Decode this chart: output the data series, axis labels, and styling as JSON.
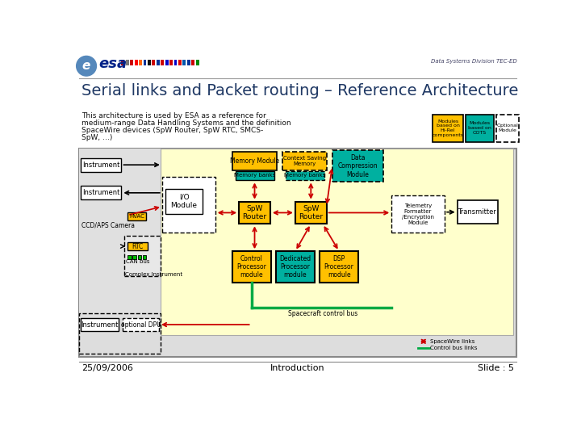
{
  "title": "Serial links and Packet routing – Reference Architecture",
  "subtitle": "Data Systems Division TEC-ED",
  "description_lines": [
    "This architecture is used by ESA as a reference for",
    "medium-range Data Handling Systems and the definition",
    "SpaceWire devices (SpW Router, SpW RTC, SMCS-",
    "SpW, …)"
  ],
  "footer_left": "25/09/2006",
  "footer_center": "Introduction",
  "footer_right": "Slide : 5",
  "bg_color": "#FFFFFF",
  "diagram_bg": "#FFFFCC",
  "title_color": "#1F3864",
  "yellow": "#FFC000",
  "teal": "#00B0A0",
  "green": "#00AA44",
  "red": "#CC0000",
  "black": "#000000",
  "gray_outer": "#DDDDDD",
  "gray_left": "#E8E8E8"
}
